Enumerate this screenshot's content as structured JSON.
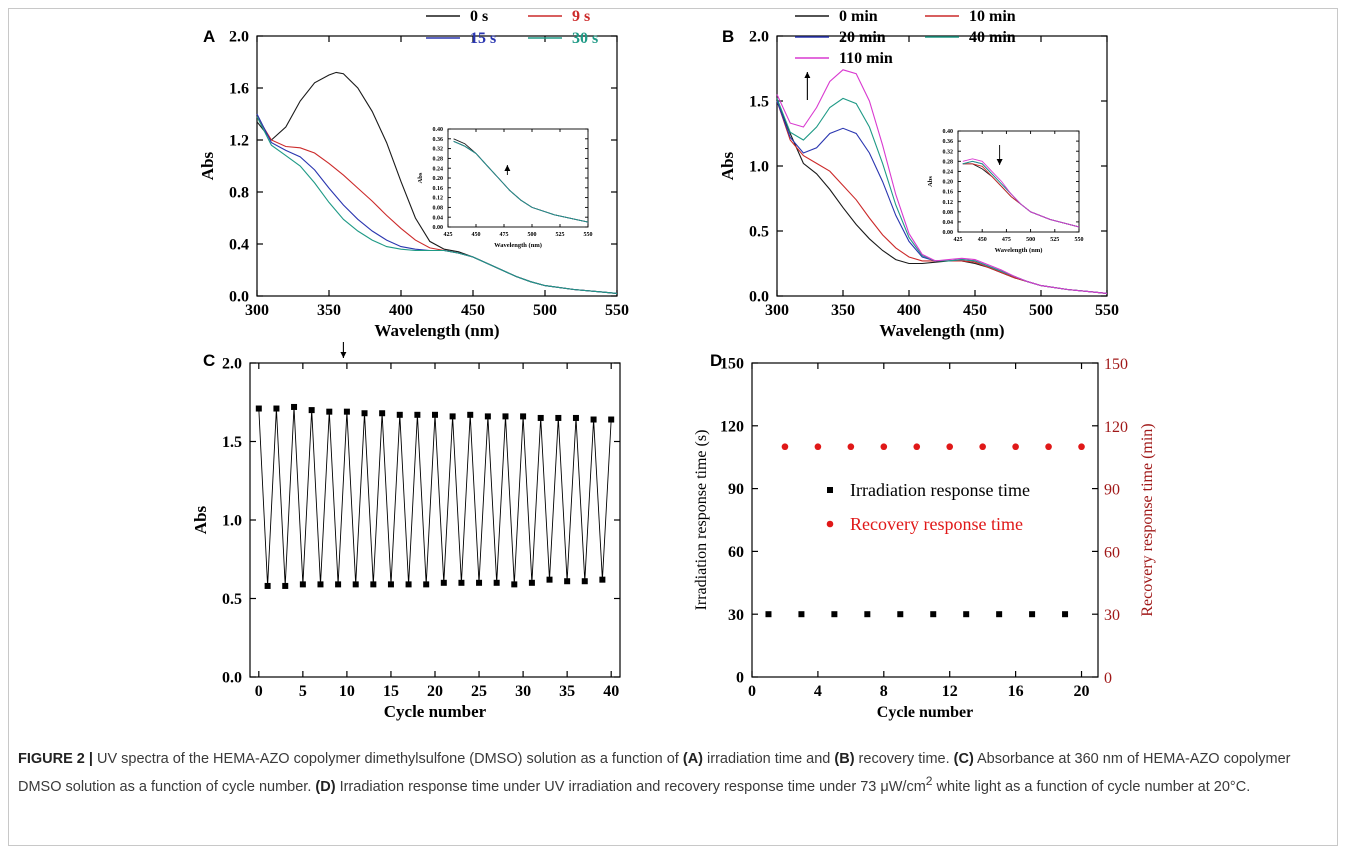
{
  "panels": {
    "A": {
      "label": "A",
      "chart_data": {
        "type": "line",
        "xlabel": "Wavelength (nm)",
        "ylabel": "Abs",
        "xlim": [
          300,
          550
        ],
        "ylim": [
          0,
          2.0
        ],
        "xticks": [
          300,
          350,
          400,
          450,
          500,
          550
        ],
        "yticks": [
          0.0,
          0.4,
          0.8,
          1.2,
          1.6,
          2.0
        ],
        "ytick_decimals": 1,
        "legend": "top-right",
        "series": [
          {
            "name": "0 s",
            "color": "#1a1a1a",
            "x": [
              300,
              310,
              320,
              330,
              340,
              350,
              355,
              360,
              370,
              380,
              390,
              400,
              410,
              420,
              430,
              440,
              450,
              460,
              470,
              480,
              490,
              500,
              520,
              540,
              550
            ],
            "y": [
              1.34,
              1.2,
              1.3,
              1.5,
              1.64,
              1.7,
              1.72,
              1.71,
              1.6,
              1.42,
              1.18,
              0.88,
              0.6,
              0.42,
              0.36,
              0.34,
              0.3,
              0.25,
              0.2,
              0.15,
              0.11,
              0.08,
              0.05,
              0.03,
              0.02
            ]
          },
          {
            "name": "9 s",
            "color": "#cc2a2a",
            "x": [
              300,
              310,
              320,
              330,
              340,
              350,
              360,
              370,
              380,
              390,
              400,
              410,
              420,
              430,
              440,
              450,
              460,
              470,
              480,
              490,
              500,
              520,
              540,
              550
            ],
            "y": [
              1.38,
              1.2,
              1.15,
              1.14,
              1.1,
              1.02,
              0.93,
              0.83,
              0.73,
              0.62,
              0.52,
              0.43,
              0.37,
              0.35,
              0.33,
              0.3,
              0.25,
              0.2,
              0.15,
              0.11,
              0.08,
              0.05,
              0.03,
              0.02
            ]
          },
          {
            "name": "15 s",
            "color": "#2a36b0",
            "x": [
              300,
              310,
              320,
              330,
              340,
              350,
              360,
              370,
              380,
              390,
              400,
              410,
              420,
              430,
              440,
              450,
              460,
              470,
              480,
              490,
              500,
              520,
              540,
              550
            ],
            "y": [
              1.4,
              1.18,
              1.12,
              1.07,
              0.97,
              0.83,
              0.7,
              0.59,
              0.5,
              0.43,
              0.38,
              0.36,
              0.35,
              0.35,
              0.33,
              0.3,
              0.25,
              0.2,
              0.15,
              0.11,
              0.08,
              0.05,
              0.03,
              0.02
            ]
          },
          {
            "name": "30 s",
            "color": "#1f9a86",
            "x": [
              300,
              310,
              320,
              330,
              340,
              350,
              360,
              370,
              380,
              390,
              400,
              410,
              420,
              430,
              440,
              450,
              460,
              470,
              480,
              490,
              500,
              520,
              540,
              550
            ],
            "y": [
              1.38,
              1.16,
              1.08,
              1.0,
              0.87,
              0.72,
              0.59,
              0.5,
              0.43,
              0.38,
              0.36,
              0.35,
              0.35,
              0.35,
              0.33,
              0.3,
              0.25,
              0.2,
              0.15,
              0.11,
              0.08,
              0.05,
              0.03,
              0.02
            ]
          }
        ],
        "arrow": {
          "direction": "down",
          "x": 360
        },
        "inset": {
          "xlabel": "Wavelength (nm)",
          "ylabel": "Abs",
          "xlim": [
            425,
            550
          ],
          "ylim": [
            0,
            0.4
          ],
          "xticks": [
            425,
            450,
            475,
            500,
            525,
            550
          ],
          "yticks": [
            0.0,
            0.04,
            0.08,
            0.12,
            0.16,
            0.2,
            0.24,
            0.28,
            0.32,
            0.36,
            0.4
          ],
          "ytick_decimals": 2,
          "arrow": {
            "direction": "up",
            "x": 478
          }
        }
      }
    },
    "B": {
      "label": "B",
      "chart_data": {
        "type": "line",
        "xlabel": "Wavelength (nm)",
        "ylabel": "Abs",
        "xlim": [
          300,
          550
        ],
        "ylim": [
          0,
          2.0
        ],
        "xticks": [
          300,
          350,
          400,
          450,
          500,
          550
        ],
        "yticks": [
          0.0,
          0.5,
          1.0,
          1.5,
          2.0
        ],
        "ytick_decimals": 1,
        "legend": "top-right",
        "series": [
          {
            "name": "0 min",
            "color": "#1a1a1a",
            "x": [
              300,
              310,
              320,
              330,
              340,
              350,
              360,
              370,
              380,
              390,
              400,
              410,
              420,
              430,
              440,
              450,
              460,
              470,
              480,
              490,
              500,
              520,
              540,
              550
            ],
            "y": [
              1.5,
              1.25,
              1.02,
              0.94,
              0.82,
              0.68,
              0.55,
              0.44,
              0.35,
              0.28,
              0.25,
              0.25,
              0.26,
              0.27,
              0.27,
              0.25,
              0.22,
              0.18,
              0.14,
              0.11,
              0.08,
              0.05,
              0.03,
              0.02
            ]
          },
          {
            "name": "10 min",
            "color": "#cc2a2a",
            "x": [
              300,
              310,
              320,
              330,
              340,
              350,
              360,
              370,
              380,
              390,
              400,
              410,
              420,
              430,
              440,
              450,
              460,
              470,
              480,
              490,
              500,
              520,
              540,
              550
            ],
            "y": [
              1.5,
              1.2,
              1.08,
              1.02,
              0.96,
              0.85,
              0.74,
              0.6,
              0.47,
              0.37,
              0.3,
              0.27,
              0.27,
              0.27,
              0.27,
              0.26,
              0.22,
              0.18,
              0.14,
              0.11,
              0.08,
              0.05,
              0.03,
              0.02
            ]
          },
          {
            "name": "20 min",
            "color": "#2a36b0",
            "x": [
              300,
              310,
              320,
              330,
              340,
              350,
              360,
              370,
              380,
              390,
              400,
              410,
              420,
              430,
              440,
              450,
              460,
              470,
              480,
              490,
              500,
              520,
              540,
              550
            ],
            "y": [
              1.5,
              1.22,
              1.1,
              1.14,
              1.25,
              1.29,
              1.25,
              1.1,
              0.88,
              0.62,
              0.42,
              0.3,
              0.27,
              0.27,
              0.28,
              0.27,
              0.23,
              0.19,
              0.15,
              0.11,
              0.08,
              0.05,
              0.03,
              0.02
            ]
          },
          {
            "name": "40 min",
            "color": "#1f9a86",
            "x": [
              300,
              310,
              320,
              330,
              340,
              350,
              360,
              370,
              380,
              390,
              400,
              410,
              420,
              430,
              440,
              450,
              460,
              470,
              480,
              490,
              500,
              520,
              540,
              550
            ],
            "y": [
              1.52,
              1.26,
              1.2,
              1.3,
              1.45,
              1.52,
              1.48,
              1.3,
              1.02,
              0.7,
              0.45,
              0.31,
              0.27,
              0.27,
              0.28,
              0.27,
              0.23,
              0.19,
              0.15,
              0.11,
              0.08,
              0.05,
              0.03,
              0.02
            ]
          },
          {
            "name": "110 min",
            "color": "#d93ad0",
            "x": [
              300,
              310,
              320,
              330,
              340,
              350,
              360,
              370,
              380,
              390,
              400,
              410,
              420,
              430,
              440,
              450,
              460,
              470,
              480,
              490,
              500,
              520,
              540,
              550
            ],
            "y": [
              1.55,
              1.33,
              1.3,
              1.45,
              1.65,
              1.74,
              1.71,
              1.5,
              1.16,
              0.78,
              0.48,
              0.32,
              0.27,
              0.28,
              0.29,
              0.28,
              0.24,
              0.2,
              0.15,
              0.11,
              0.08,
              0.05,
              0.03,
              0.02
            ]
          }
        ],
        "arrow": {
          "direction": "up",
          "x": 323
        },
        "inset": {
          "xlabel": "Wavelength (nm)",
          "ylabel": "Abs",
          "xlim": [
            425,
            550
          ],
          "ylim": [
            0,
            0.4
          ],
          "xticks": [
            425,
            450,
            475,
            500,
            525,
            550
          ],
          "yticks": [
            0.0,
            0.04,
            0.08,
            0.12,
            0.16,
            0.2,
            0.24,
            0.28,
            0.32,
            0.36,
            0.4
          ],
          "ytick_decimals": 2,
          "arrow": {
            "direction": "down",
            "x": 468
          }
        }
      }
    },
    "C": {
      "label": "C",
      "chart_data": {
        "type": "line",
        "marker": "square",
        "xlabel": "Cycle number",
        "ylabel": "Abs",
        "xlim": [
          -1,
          41
        ],
        "ylim": [
          0,
          2.0
        ],
        "xticks": [
          0,
          5,
          10,
          15,
          20,
          25,
          30,
          35,
          40
        ],
        "yticks": [
          0.0,
          0.5,
          1.0,
          1.5,
          2.0
        ],
        "ytick_decimals": 1,
        "series": [
          {
            "name": "",
            "color": "#000000",
            "x": [
              0,
              1,
              2,
              3,
              4,
              5,
              6,
              7,
              8,
              9,
              10,
              11,
              12,
              13,
              14,
              15,
              16,
              17,
              18,
              19,
              20,
              21,
              22,
              23,
              24,
              25,
              26,
              27,
              28,
              29,
              30,
              31,
              32,
              33,
              34,
              35,
              36,
              37,
              38,
              39,
              40
            ],
            "y": [
              1.71,
              0.58,
              1.71,
              0.58,
              1.72,
              0.59,
              1.7,
              0.59,
              1.69,
              0.59,
              1.69,
              0.59,
              1.68,
              0.59,
              1.68,
              0.59,
              1.67,
              0.59,
              1.67,
              0.59,
              1.67,
              0.6,
              1.66,
              0.6,
              1.67,
              0.6,
              1.66,
              0.6,
              1.66,
              0.59,
              1.66,
              0.6,
              1.65,
              0.62,
              1.65,
              0.61,
              1.65,
              0.61,
              1.64,
              0.62,
              1.64
            ]
          }
        ]
      }
    },
    "D": {
      "label": "D",
      "chart_data": {
        "type": "scatter",
        "xlabel": "Cycle number",
        "ylabel": "Irradiation response time (s)",
        "y2label": "Recovery response time (min)",
        "xlim": [
          0,
          21
        ],
        "ylim": [
          0,
          150
        ],
        "y2lim": [
          0,
          150
        ],
        "xticks": [
          0,
          4,
          8,
          12,
          16,
          20
        ],
        "yticks": [
          0,
          30,
          60,
          90,
          120,
          150
        ],
        "y2ticks": [
          0,
          30,
          60,
          90,
          120,
          150
        ],
        "legend": "center",
        "series": [
          {
            "name": "Irradiation response time",
            "marker": "square",
            "color": "#000000",
            "axis": "y",
            "x": [
              1,
              3,
              5,
              7,
              9,
              11,
              13,
              15,
              17,
              19
            ],
            "y": [
              30,
              30,
              30,
              30,
              30,
              30,
              30,
              30,
              30,
              30
            ]
          },
          {
            "name": "Recovery response time",
            "marker": "circle",
            "color": "#e01818",
            "axis": "y2",
            "x": [
              2,
              4,
              6,
              8,
              10,
              12,
              14,
              16,
              18,
              20
            ],
            "y": [
              110,
              110,
              110,
              110,
              110,
              110,
              110,
              110,
              110,
              110
            ]
          }
        ]
      }
    }
  },
  "caption": {
    "fig_label": "FIGURE 2 |",
    "t1": " UV spectra of the HEMA-AZO copolymer dimethylsulfone (DMSO) solution as a function of ",
    "a": "(A)",
    "t2": " irradiation time and ",
    "b": "(B)",
    "t3": " recovery time. ",
    "c": "(C)",
    "t4": " Absorbance at 360 nm of HEMA-AZO copolymer DMSO solution as a function of cycle number. ",
    "d": "(D)",
    "t5": " Irradiation response time under UV irradiation and recovery response time under 73 μW/cm",
    "sup": "2",
    "t6": " white light as a function of cycle number at 20°C."
  }
}
